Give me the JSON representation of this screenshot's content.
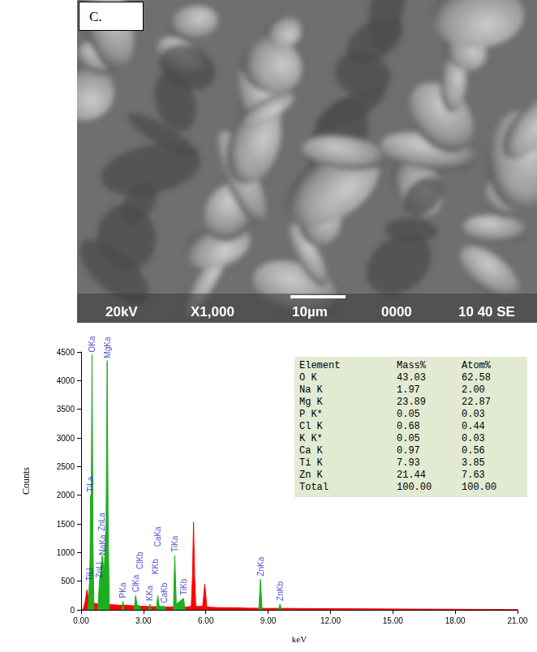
{
  "panel_label": "C.",
  "micrograph": {
    "info_bar": [
      "20kV",
      "X1,000",
      "10µm",
      "0000",
      "10 40 SE"
    ]
  },
  "chart_data": {
    "type": "area",
    "x_label": "keV",
    "y_label": "Counts",
    "xlim": [
      0,
      21
    ],
    "xticks": [
      {
        "value": 0,
        "label": "0.00"
      },
      {
        "value": 3,
        "label": "3.00"
      },
      {
        "value": 6,
        "label": "6.00"
      },
      {
        "value": 9,
        "label": "9.00"
      },
      {
        "value": 12,
        "label": "12.00"
      },
      {
        "value": 15,
        "label": "15.00"
      },
      {
        "value": 18,
        "label": "18.00"
      },
      {
        "value": 21,
        "label": "21.00"
      }
    ],
    "ylim": [
      0,
      4500
    ],
    "yticks": [
      0,
      500,
      1000,
      1500,
      2000,
      2500,
      3000,
      3500,
      4000,
      4500
    ],
    "grid": false,
    "series": [
      {
        "color": "#ff0000",
        "x": [
          0,
          0.1,
          0.2,
          0.28,
          0.35,
          0.6,
          0.8,
          1.5,
          1.8,
          2.2,
          2.5,
          3.0,
          3.5,
          4.0,
          4.5,
          5.0,
          5.3,
          5.36,
          5.41,
          5.46,
          5.52,
          5.85,
          5.9,
          5.95,
          6.0,
          6.05,
          6.5,
          7.5,
          8.0,
          9.0,
          10,
          12,
          15,
          18,
          21
        ],
        "values": [
          0,
          10,
          150,
          350,
          200,
          120,
          100,
          90,
          80,
          80,
          70,
          60,
          55,
          50,
          50,
          45,
          60,
          600,
          1530,
          600,
          60,
          60,
          250,
          450,
          250,
          50,
          40,
          35,
          30,
          25,
          25,
          20,
          15,
          10,
          5
        ]
      },
      {
        "color": "#1fae1f",
        "x": [
          0.33,
          0.395,
          0.43,
          0.452,
          0.48,
          0.525,
          0.57,
          0.62,
          0.7,
          0.8,
          0.884,
          0.95,
          1.012,
          1.041,
          1.1,
          1.2,
          1.254,
          1.3,
          1.36,
          1.6,
          1.95,
          2.013,
          2.08,
          2.3,
          2.55,
          2.621,
          2.7,
          2.815,
          2.88,
          3.0,
          3.25,
          3.312,
          3.38,
          3.5,
          3.62,
          3.69,
          3.76,
          4.012,
          4.07,
          4.2,
          4.44,
          4.508,
          4.58,
          4.931,
          5.0,
          7.0,
          8.55,
          8.63,
          8.71,
          9.0,
          9.5,
          9.57,
          9.64
        ],
        "values": [
          0,
          450,
          900,
          2000,
          1500,
          4450,
          1200,
          0,
          null,
          0,
          500,
          700,
          950,
          900,
          600,
          1500,
          4350,
          1500,
          0,
          null,
          0,
          150,
          0,
          null,
          0,
          250,
          80,
          70,
          0,
          null,
          0,
          100,
          0,
          null,
          0,
          250,
          60,
          60,
          0,
          null,
          0,
          950,
          100,
          200,
          0,
          null,
          0,
          530,
          0,
          null,
          0,
          100,
          0
        ]
      }
    ],
    "annotations": [
      {
        "text": "TiLl",
        "x": 0.395
      },
      {
        "text": "TiLa",
        "x": 0.452
      },
      {
        "text": "OKa",
        "x": 0.525
      },
      {
        "text": "ZnLl",
        "x": 0.884
      },
      {
        "text": "ZnLa",
        "x": 1.012
      },
      {
        "text": "NaKa",
        "x": 1.041
      },
      {
        "text": "MgKa",
        "x": 1.254
      },
      {
        "text": "PKa",
        "x": 2.013
      },
      {
        "text": "ClKa",
        "x": 2.621
      },
      {
        "text": "ClKb",
        "x": 2.815
      },
      {
        "text": "KKa",
        "x": 3.312
      },
      {
        "text": "KKb",
        "x": 3.589
      },
      {
        "text": "CaKa",
        "x": 3.69
      },
      {
        "text": "CaKb",
        "x": 4.012
      },
      {
        "text": "TiKa",
        "x": 4.508
      },
      {
        "text": "TiKb",
        "x": 4.931
      },
      {
        "text": "ZnKa",
        "x": 8.63
      },
      {
        "text": "ZnKb",
        "x": 9.57
      }
    ],
    "table": {
      "columns": [
        "Element",
        "Mass%",
        "Atom%"
      ],
      "rows": [
        [
          "O K",
          "43.03",
          "62.58"
        ],
        [
          "Na K",
          "1.97",
          "2.00"
        ],
        [
          "Mg K",
          "23.89",
          "22.87"
        ],
        [
          "P K*",
          "0.05",
          "0.03"
        ],
        [
          "Cl K",
          "0.68",
          "0.44"
        ],
        [
          "K K*",
          "0.05",
          "0.03"
        ],
        [
          "Ca K",
          "0.97",
          "0.56"
        ],
        [
          "Ti K",
          "7.93",
          "3.85"
        ],
        [
          "Zn K",
          "21.44",
          "7.63"
        ],
        [
          "Total",
          "100.00",
          "100.00"
        ]
      ]
    }
  }
}
